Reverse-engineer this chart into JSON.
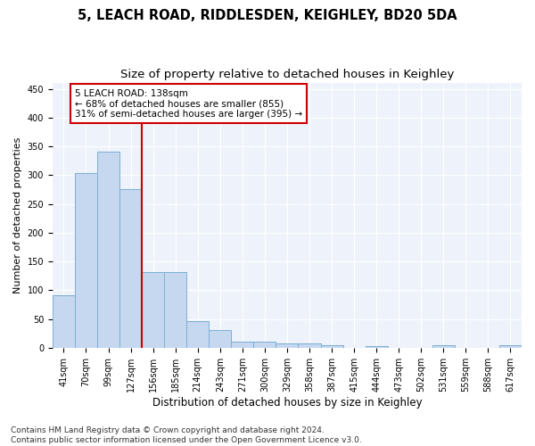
{
  "title": "5, LEACH ROAD, RIDDLESDEN, KEIGHLEY, BD20 5DA",
  "subtitle": "Size of property relative to detached houses in Keighley",
  "xlabel": "Distribution of detached houses by size in Keighley",
  "ylabel": "Number of detached properties",
  "categories": [
    "41sqm",
    "70sqm",
    "99sqm",
    "127sqm",
    "156sqm",
    "185sqm",
    "214sqm",
    "243sqm",
    "271sqm",
    "300sqm",
    "329sqm",
    "358sqm",
    "387sqm",
    "415sqm",
    "444sqm",
    "473sqm",
    "502sqm",
    "531sqm",
    "559sqm",
    "588sqm",
    "617sqm"
  ],
  "values": [
    91,
    303,
    340,
    276,
    131,
    131,
    46,
    30,
    10,
    10,
    8,
    8,
    5,
    0,
    3,
    0,
    0,
    4,
    0,
    0,
    4
  ],
  "bar_color": "#c5d8f0",
  "bar_edgecolor": "#7bafd4",
  "vline_x": 3.5,
  "vline_color": "#cc0000",
  "annotation_text": "5 LEACH ROAD: 138sqm\n← 68% of detached houses are smaller (855)\n31% of semi-detached houses are larger (395) →",
  "annotation_box_color": "#ffffff",
  "annotation_box_edgecolor": "#cc0000",
  "ylim": [
    0,
    460
  ],
  "yticks": [
    0,
    50,
    100,
    150,
    200,
    250,
    300,
    350,
    400,
    450
  ],
  "background_color": "#eef2fa",
  "footer": "Contains HM Land Registry data © Crown copyright and database right 2024.\nContains public sector information licensed under the Open Government Licence v3.0.",
  "title_fontsize": 10.5,
  "subtitle_fontsize": 9.5,
  "xlabel_fontsize": 8.5,
  "ylabel_fontsize": 8,
  "tick_fontsize": 7,
  "footer_fontsize": 6.5,
  "annot_fontsize": 7.5
}
